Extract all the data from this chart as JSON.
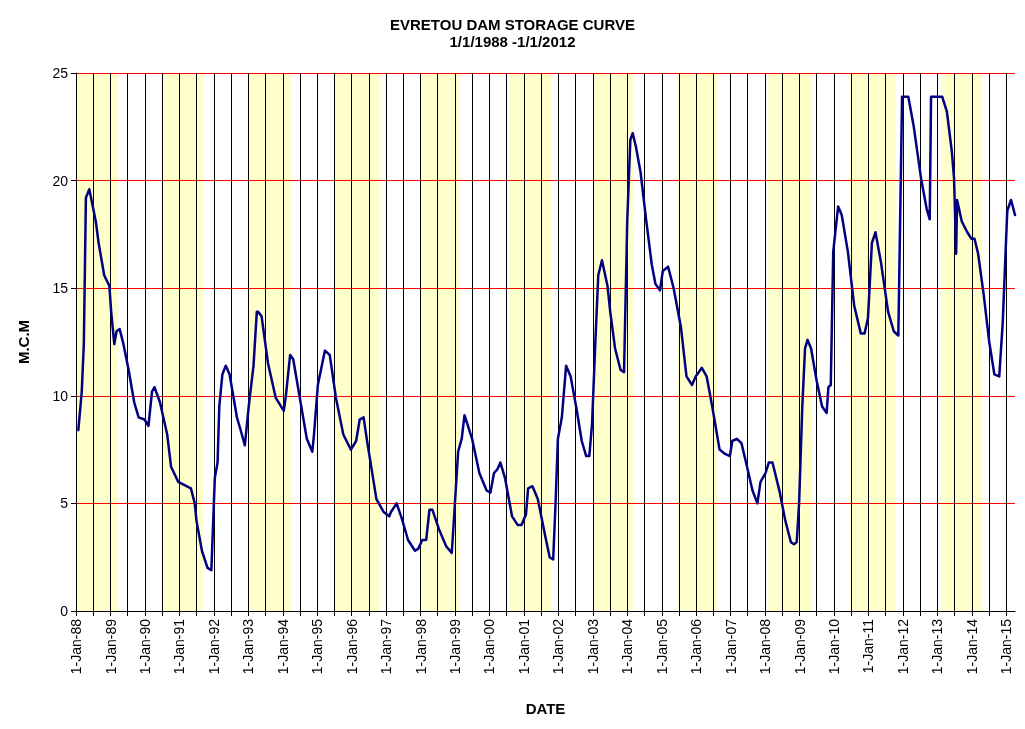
{
  "chart_data": {
    "type": "line",
    "title": "EVRETOU DAM STORAGE CURVE",
    "subtitle": "1/1/1988 -1/1/2012",
    "xlabel": "DATE",
    "ylabel": "M.C.M",
    "xlim": [
      "1988-01-01",
      "2015-04-04"
    ],
    "xticks": [
      {
        "value": "1988-01-01",
        "label": "1-Jan-88"
      },
      {
        "value": "1988-07-01",
        "label": null
      },
      {
        "value": "1989-01-01",
        "label": "1-Jan-89"
      },
      {
        "value": "1989-07-01",
        "label": null
      },
      {
        "value": "1990-01-01",
        "label": "1-Jan-90"
      },
      {
        "value": "1990-07-01",
        "label": null
      },
      {
        "value": "1991-01-01",
        "label": "1-Jan-91"
      },
      {
        "value": "1991-07-01",
        "label": null
      },
      {
        "value": "1992-01-01",
        "label": "1-Jan-92"
      },
      {
        "value": "1992-07-01",
        "label": null
      },
      {
        "value": "1993-01-01",
        "label": "1-Jan-93"
      },
      {
        "value": "1993-07-01",
        "label": null
      },
      {
        "value": "1994-01-01",
        "label": "1-Jan-94"
      },
      {
        "value": "1994-07-01",
        "label": null
      },
      {
        "value": "1995-01-01",
        "label": "1-Jan-95"
      },
      {
        "value": "1995-07-01",
        "label": null
      },
      {
        "value": "1996-01-01",
        "label": "1-Jan-96"
      },
      {
        "value": "1996-07-01",
        "label": null
      },
      {
        "value": "1997-01-01",
        "label": "1-Jan-97"
      },
      {
        "value": "1997-07-01",
        "label": null
      },
      {
        "value": "1998-01-01",
        "label": "1-Jan-98"
      },
      {
        "value": "1998-07-01",
        "label": null
      },
      {
        "value": "1999-01-01",
        "label": "1-Jan-99"
      },
      {
        "value": "1999-07-01",
        "label": null
      },
      {
        "value": "2000-01-01",
        "label": "1-Jan-00"
      },
      {
        "value": "2000-07-01",
        "label": null
      },
      {
        "value": "2001-01-01",
        "label": "1-Jan-01"
      },
      {
        "value": "2001-07-01",
        "label": null
      },
      {
        "value": "2002-01-01",
        "label": "1-Jan-02"
      },
      {
        "value": "2002-07-01",
        "label": null
      },
      {
        "value": "2003-01-01",
        "label": "1-Jan-03"
      },
      {
        "value": "2003-07-01",
        "label": null
      },
      {
        "value": "2004-01-01",
        "label": "1-Jan-04"
      },
      {
        "value": "2004-07-01",
        "label": null
      },
      {
        "value": "2005-01-01",
        "label": "1-Jan-05"
      },
      {
        "value": "2005-07-01",
        "label": null
      },
      {
        "value": "2006-01-01",
        "label": "1-Jan-06"
      },
      {
        "value": "2006-07-01",
        "label": null
      },
      {
        "value": "2007-01-01",
        "label": "1-Jan-07"
      },
      {
        "value": "2007-07-01",
        "label": null
      },
      {
        "value": "2008-01-01",
        "label": "1-Jan-08"
      },
      {
        "value": "2008-07-01",
        "label": null
      },
      {
        "value": "2009-01-01",
        "label": "1-Jan-09"
      },
      {
        "value": "2009-07-01",
        "label": null
      },
      {
        "value": "2010-01-01",
        "label": "1-Jan-10"
      },
      {
        "value": "2010-07-01",
        "label": null
      },
      {
        "value": "2011-01-01",
        "label": "1-Jan-11"
      },
      {
        "value": "2011-07-01",
        "label": null
      },
      {
        "value": "2012-01-01",
        "label": "1-Jan-12"
      },
      {
        "value": "2012-07-01",
        "label": null
      },
      {
        "value": "2013-01-01",
        "label": "1-Jan-13"
      },
      {
        "value": "2013-07-01",
        "label": null
      },
      {
        "value": "2014-01-01",
        "label": "1-Jan-14"
      },
      {
        "value": "2014-07-01",
        "label": null
      },
      {
        "value": "2015-01-01",
        "label": "1-Jan-15"
      }
    ],
    "ylim": [
      0,
      25
    ],
    "yticks": [
      0,
      5,
      10,
      15,
      20,
      25
    ],
    "grid": true,
    "marker": "none",
    "line_style": "solid",
    "bands": [
      {
        "axis": "x",
        "from": "1988-01-01",
        "to": "1989-03-25",
        "color": "#ffffcc"
      },
      {
        "axis": "x",
        "from": "1990-07-05",
        "to": "1991-09-09",
        "color": "#ffffcc"
      },
      {
        "axis": "x",
        "from": "1993-01-08",
        "to": "1994-03-27",
        "color": "#ffffcc"
      },
      {
        "axis": "x",
        "from": "1995-06-24",
        "to": "1996-11-03",
        "color": "#ffffcc"
      },
      {
        "axis": "x",
        "from": "1998-01-05",
        "to": "1999-02-18",
        "color": "#ffffcc"
      },
      {
        "axis": "x",
        "from": "2000-08-03",
        "to": "2001-10-15",
        "color": "#ffffcc"
      },
      {
        "axis": "x",
        "from": "2003-01-15",
        "to": "2004-03-13",
        "color": "#ffffcc"
      },
      {
        "axis": "x",
        "from": "2005-06-13",
        "to": "2006-08-14",
        "color": "#ffffcc"
      },
      {
        "axis": "x",
        "from": "2008-02-03",
        "to": "2009-05-14",
        "color": "#ffffcc"
      },
      {
        "axis": "x",
        "from": "2010-06-16",
        "to": "2011-10-15",
        "color": "#ffffcc"
      },
      {
        "axis": "x",
        "from": "2013-02-07",
        "to": "2014-04-22",
        "color": "#ffffcc"
      }
    ],
    "series": [
      {
        "color": "#000080",
        "x": [
          "1988-01-26",
          "1988-03-02",
          "1988-03-24",
          "1988-04-15",
          "1988-05-21",
          "1988-07-29",
          "1988-08-28",
          "1988-10-26",
          "1988-12-20",
          "1989-01-08",
          "1989-02-10",
          "1989-03-06",
          "1989-04-08",
          "1989-05-18",
          "1989-07-12",
          "1989-09-09",
          "1989-10-26",
          "1989-12-27",
          "1990-02-07",
          "1990-03-17",
          "1990-04-12",
          "1990-06-09",
          "1990-08-25",
          "1990-10-05",
          "1990-12-20",
          "1991-05-03",
          "1991-06-13",
          "1991-07-01",
          "1991-08-28",
          "1991-10-26",
          "1991-12-06",
          "1992-01-12",
          "1992-02-10",
          "1992-02-28",
          "1992-04-01",
          "1992-05-07",
          "1992-06-16",
          "1992-09-02",
          "1992-10-12",
          "1992-11-25",
          "1993-01-05",
          "1993-02-25",
          "1993-04-01",
          "1993-04-15",
          "1993-05-21",
          "1993-07-29",
          "1993-10-19",
          "1994-01-12",
          "1994-02-03",
          "1994-03-20",
          "1994-04-22",
          "1994-06-27",
          "1994-09-13",
          "1994-11-10",
          "1994-11-28",
          "1995-01-08",
          "1995-03-24",
          "1995-05-14",
          "1995-07-19",
          "1995-10-05",
          "1995-12-24",
          "1996-02-18",
          "1996-03-27",
          "1996-05-07",
          "1996-06-13",
          "1996-09-20",
          "1996-12-06",
          "1997-02-03",
          "1997-02-21",
          "1997-04-22",
          "1997-06-16",
          "1997-08-21",
          "1997-11-03",
          "1997-12-09",
          "1998-01-19",
          "1998-03-02",
          "1998-04-05",
          "1998-05-07",
          "1998-07-15",
          "1998-10-01",
          "1998-11-28",
          "1998-12-17",
          "1999-02-03",
          "1999-03-13",
          "1999-04-12",
          "1999-07-01",
          "1999-09-17",
          "1999-12-02",
          "2000-01-12",
          "2000-02-18",
          "2000-03-27",
          "2000-04-26",
          "2000-06-13",
          "2000-08-28",
          "2000-10-26",
          "2000-12-06",
          "2001-01-23",
          "2001-02-14",
          "2001-04-01",
          "2001-05-28",
          "2001-08-14",
          "2001-10-01",
          "2001-11-07",
          "2001-12-02",
          "2001-12-27",
          "2002-02-07",
          "2002-03-24",
          "2002-05-11",
          "2002-07-08",
          "2002-09-06",
          "2002-10-23",
          "2002-11-25",
          "2002-12-24",
          "2003-01-30",
          "2003-02-28",
          "2003-04-08",
          "2003-06-06",
          "2003-07-05",
          "2003-08-25",
          "2003-10-23",
          "2003-11-28",
          "2004-01-01",
          "2004-02-03",
          "2004-02-28",
          "2004-04-01",
          "2004-05-21",
          "2004-07-19",
          "2004-09-17",
          "2004-10-26",
          "2004-12-13",
          "2005-01-12",
          "2005-03-09",
          "2005-05-07",
          "2005-07-23",
          "2005-09-20",
          "2005-11-18",
          "2005-12-27",
          "2006-03-02",
          "2006-04-22",
          "2006-06-20",
          "2006-09-06",
          "2006-11-03",
          "2006-12-24",
          "2007-01-19",
          "2007-03-09",
          "2007-04-26",
          "2007-06-24",
          "2007-08-21",
          "2007-10-12",
          "2007-11-14",
          "2008-01-05",
          "2008-02-10",
          "2008-03-20",
          "2008-06-06",
          "2008-08-03",
          "2008-10-01",
          "2008-11-03",
          "2008-12-02",
          "2008-12-27",
          "2009-01-30",
          "2009-02-28",
          "2009-03-27",
          "2009-05-03",
          "2009-07-01",
          "2009-08-28",
          "2009-10-15",
          "2009-11-03",
          "2009-11-28",
          "2009-12-24",
          "2010-02-14",
          "2010-03-24",
          "2010-05-28",
          "2010-08-03",
          "2010-10-12",
          "2010-11-21",
          "2010-12-27",
          "2011-02-07",
          "2011-03-17",
          "2011-05-14",
          "2011-07-29",
          "2011-09-27",
          "2011-11-14",
          "2011-12-06",
          "2011-12-24",
          "2012-02-28",
          "2012-04-26",
          "2012-07-12",
          "2012-09-09",
          "2012-10-12",
          "2012-10-26",
          "2013-02-21",
          "2013-04-12",
          "2013-06-02",
          "2013-06-27",
          "2013-07-19",
          "2013-07-29",
          "2013-09-17",
          "2013-11-14",
          "2013-12-27",
          "2014-01-30",
          "2014-03-09",
          "2014-05-07",
          "2014-07-05",
          "2014-08-28",
          "2014-10-19",
          "2014-11-25",
          "2015-01-12",
          "2015-02-21",
          "2015-04-04"
        ],
        "values": [
          8.4,
          10.2,
          12.4,
          19.2,
          19.6,
          18.1,
          17.1,
          15.6,
          15.1,
          13.9,
          12.4,
          13.0,
          13.1,
          12.4,
          11.2,
          9.7,
          9.0,
          8.9,
          8.6,
          10.2,
          10.4,
          9.7,
          8.2,
          6.7,
          6.0,
          5.7,
          5.0,
          4.2,
          2.8,
          2.0,
          1.9,
          6.2,
          6.9,
          9.5,
          11.0,
          11.4,
          11.0,
          9.0,
          8.4,
          7.7,
          9.5,
          11.4,
          13.9,
          13.9,
          13.7,
          11.5,
          9.9,
          9.3,
          10.0,
          11.9,
          11.7,
          10.0,
          8.0,
          7.4,
          8.2,
          10.5,
          12.1,
          11.9,
          9.9,
          8.2,
          7.5,
          7.9,
          8.9,
          9.0,
          7.9,
          5.2,
          4.6,
          4.4,
          4.6,
          5.0,
          4.3,
          3.3,
          2.8,
          2.9,
          3.3,
          3.3,
          4.7,
          4.7,
          3.8,
          3.0,
          2.7,
          4.0,
          7.4,
          8.0,
          9.1,
          8.0,
          6.4,
          5.6,
          5.5,
          6.4,
          6.6,
          6.9,
          6.2,
          4.4,
          4.0,
          4.0,
          4.5,
          5.7,
          5.8,
          5.2,
          3.5,
          2.5,
          2.4,
          5.0,
          8.0,
          9.0,
          11.4,
          10.9,
          9.5,
          7.9,
          7.2,
          7.2,
          8.7,
          12.7,
          15.6,
          16.3,
          15.1,
          13.9,
          12.2,
          11.2,
          11.1,
          18.1,
          21.9,
          22.2,
          21.6,
          20.4,
          18.2,
          16.1,
          15.2,
          14.9,
          15.8,
          16.0,
          15.0,
          13.2,
          10.9,
          10.5,
          10.9,
          11.3,
          10.9,
          9.5,
          7.5,
          7.3,
          7.2,
          7.9,
          8.0,
          7.8,
          6.7,
          5.6,
          5.0,
          6.0,
          6.4,
          6.9,
          6.9,
          5.5,
          4.2,
          3.2,
          3.1,
          3.2,
          5.0,
          9.5,
          12.2,
          12.6,
          12.2,
          10.7,
          9.5,
          9.2,
          10.4,
          10.5,
          16.7,
          18.8,
          18.4,
          16.7,
          14.2,
          12.9,
          12.9,
          13.6,
          17.1,
          17.6,
          16.2,
          13.9,
          13.0,
          12.8,
          18.9,
          23.9,
          23.9,
          22.5,
          20.1,
          18.7,
          18.2,
          23.9,
          23.9,
          23.2,
          21.4,
          20.1,
          16.6,
          19.1,
          18.1,
          17.6,
          17.3,
          17.3,
          16.6,
          14.7,
          12.5,
          11.0,
          10.9,
          13.4,
          18.6,
          19.1,
          18.4
        ]
      }
    ]
  }
}
